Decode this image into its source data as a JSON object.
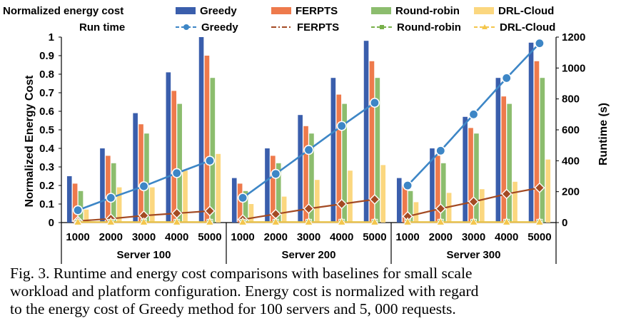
{
  "chart_data": {
    "type": "bar",
    "categories": [
      "1000",
      "2000",
      "3000",
      "4000",
      "5000"
    ],
    "groups": [
      "Server 100",
      "Server 200",
      "Server 300"
    ],
    "ylabel": "Normalized Energy Cost",
    "ylabel_right": "Runtime (s)",
    "ylim": [
      0,
      1
    ],
    "ylim_right": [
      0,
      1200
    ],
    "yticks": [
      "0",
      "0.1",
      "0.2",
      "0.3",
      "0.4",
      "0.5",
      "0.6",
      "0.7",
      "0.8",
      "0.9",
      "1"
    ],
    "yticks_right": [
      "0",
      "200",
      "400",
      "600",
      "800",
      "1000",
      "1200"
    ],
    "grid": false,
    "legend_placement": "top",
    "legend_row_labels": [
      "Normalized energy cost",
      "Run time"
    ],
    "bar_series": [
      {
        "name": "Greedy",
        "color": "#3a5eac",
        "values": [
          0.25,
          0.4,
          0.59,
          0.81,
          1.0,
          0.24,
          0.4,
          0.58,
          0.78,
          0.98,
          0.24,
          0.4,
          0.57,
          0.78,
          0.97
        ]
      },
      {
        "name": "FERPTS",
        "color": "#ee7a4c",
        "values": [
          0.21,
          0.36,
          0.53,
          0.71,
          0.9,
          0.21,
          0.36,
          0.52,
          0.69,
          0.87,
          0.2,
          0.36,
          0.51,
          0.68,
          0.87
        ]
      },
      {
        "name": "Round-robin",
        "color": "#8cbd6e",
        "values": [
          0.17,
          0.32,
          0.48,
          0.64,
          0.78,
          0.17,
          0.32,
          0.48,
          0.64,
          0.78,
          0.17,
          0.32,
          0.48,
          0.64,
          0.78
        ]
      },
      {
        "name": "DRL-Cloud",
        "color": "#fbd77f",
        "values": [
          0.07,
          0.19,
          0.19,
          0.28,
          0.37,
          0.1,
          0.14,
          0.23,
          0.28,
          0.31,
          0.11,
          0.16,
          0.18,
          0.22,
          0.34
        ]
      }
    ],
    "line_series": [
      {
        "name": "Greedy",
        "color": "#3d86c6",
        "values": [
          80,
          160,
          235,
          320,
          400,
          160,
          315,
          470,
          625,
          775,
          240,
          465,
          700,
          935,
          1160
        ]
      },
      {
        "name": "FERPTS",
        "color": "#a34a23",
        "values": [
          10,
          25,
          45,
          60,
          75,
          20,
          55,
          90,
          120,
          150,
          40,
          90,
          135,
          185,
          225
        ]
      },
      {
        "name": "Round-robin",
        "color": "#78b04a",
        "values": [
          3,
          3,
          3,
          3,
          3,
          3,
          3,
          3,
          3,
          3,
          3,
          3,
          3,
          3,
          3
        ]
      },
      {
        "name": "DRL-Cloud",
        "color": "#f3c64c",
        "values": [
          3,
          3,
          3,
          3,
          3,
          3,
          3,
          3,
          3,
          3,
          3,
          3,
          3,
          3,
          3
        ]
      }
    ]
  },
  "caption": [
    "Fig. 3.  Runtime and energy cost comparisons with baselines for small scale",
    "workload and platform configuration. Energy cost is normalized with regard",
    "to the energy cost of Greedy method for 100 servers and 5, 000 requests."
  ]
}
